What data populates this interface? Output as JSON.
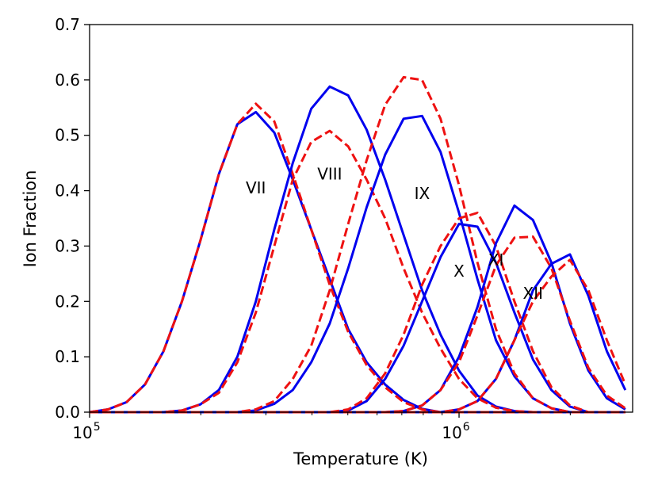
{
  "chart_data": {
    "type": "line",
    "title": "",
    "xlabel": "Temperature (K)",
    "ylabel": "Ion Fraction",
    "xscale": "log",
    "xlim": [
      100000,
      2950000
    ],
    "ylim": [
      0,
      0.7
    ],
    "grid": false,
    "y_ticks": [
      {
        "value": 0.0,
        "label": "0.0"
      },
      {
        "value": 0.1,
        "label": "0.1"
      },
      {
        "value": 0.2,
        "label": "0.2"
      },
      {
        "value": 0.3,
        "label": "0.3"
      },
      {
        "value": 0.4,
        "label": "0.4"
      },
      {
        "value": 0.5,
        "label": "0.5"
      },
      {
        "value": 0.6,
        "label": "0.6"
      },
      {
        "value": 0.7,
        "label": "0.7"
      }
    ],
    "x_ticks": [
      {
        "value": 100000,
        "base": "10",
        "exp": "5"
      },
      {
        "value": 1000000,
        "base": "10",
        "exp": "6"
      }
    ],
    "x": [
      100000,
      112202,
      125893,
      141254,
      158489,
      177828,
      199526,
      223872,
      251189,
      281838,
      316228,
      354813,
      398107,
      446684,
      501187,
      562341,
      630957,
      707946,
      794328,
      891251,
      1000000,
      1122018,
      1258925,
      1412538,
      1584893,
      1778279,
      1995262,
      2238721,
      2511886,
      2818383
    ],
    "series": [
      {
        "name": "VII",
        "style": "solid",
        "color": "#0000ee",
        "values": [
          0.0,
          0.005,
          0.018,
          0.05,
          0.11,
          0.2,
          0.31,
          0.43,
          0.52,
          0.542,
          0.505,
          0.42,
          0.33,
          0.24,
          0.15,
          0.09,
          0.05,
          0.022,
          0.006,
          0.0,
          0,
          0,
          0,
          0,
          0,
          0,
          0,
          0,
          0,
          0
        ]
      },
      {
        "name": "VII",
        "style": "dashed",
        "color": "#ee1111",
        "values": [
          0.0,
          0.005,
          0.018,
          0.05,
          0.11,
          0.2,
          0.31,
          0.43,
          0.52,
          0.557,
          0.525,
          0.43,
          0.33,
          0.23,
          0.145,
          0.085,
          0.045,
          0.018,
          0.005,
          0.0,
          0,
          0,
          0,
          0,
          0,
          0,
          0,
          0,
          0,
          0
        ]
      },
      {
        "name": "VIII",
        "style": "solid",
        "color": "#0000ee",
        "values": [
          0,
          0,
          0,
          0,
          0,
          0.003,
          0.014,
          0.04,
          0.1,
          0.2,
          0.33,
          0.45,
          0.548,
          0.588,
          0.572,
          0.51,
          0.42,
          0.32,
          0.22,
          0.14,
          0.075,
          0.03,
          0.01,
          0.002,
          0,
          0,
          0,
          0,
          0,
          0
        ]
      },
      {
        "name": "VIII",
        "style": "dashed",
        "color": "#ee1111",
        "values": [
          0,
          0,
          0,
          0,
          0,
          0.003,
          0.014,
          0.035,
          0.09,
          0.18,
          0.3,
          0.42,
          0.488,
          0.508,
          0.48,
          0.42,
          0.35,
          0.26,
          0.18,
          0.115,
          0.06,
          0.025,
          0.008,
          0.002,
          0,
          0,
          0,
          0,
          0,
          0
        ]
      },
      {
        "name": "IX",
        "style": "solid",
        "color": "#0000ee",
        "values": [
          0,
          0,
          0,
          0,
          0,
          0,
          0,
          0,
          0,
          0.003,
          0.015,
          0.04,
          0.09,
          0.16,
          0.26,
          0.37,
          0.465,
          0.53,
          0.535,
          0.47,
          0.36,
          0.24,
          0.13,
          0.065,
          0.025,
          0.007,
          0,
          0,
          0,
          0
        ]
      },
      {
        "name": "IX",
        "style": "dashed",
        "color": "#ee1111",
        "values": [
          0,
          0,
          0,
          0,
          0,
          0,
          0,
          0,
          0,
          0.005,
          0.02,
          0.06,
          0.12,
          0.22,
          0.34,
          0.455,
          0.555,
          0.605,
          0.6,
          0.53,
          0.41,
          0.27,
          0.15,
          0.07,
          0.025,
          0.007,
          0,
          0,
          0,
          0
        ]
      },
      {
        "name": "X",
        "style": "solid",
        "color": "#0000ee",
        "values": [
          0,
          0,
          0,
          0,
          0,
          0,
          0,
          0,
          0,
          0,
          0,
          0,
          0,
          0,
          0.003,
          0.02,
          0.06,
          0.12,
          0.2,
          0.28,
          0.34,
          0.335,
          0.27,
          0.18,
          0.095,
          0.04,
          0.01,
          0,
          0,
          0
        ]
      },
      {
        "name": "X",
        "style": "dashed",
        "color": "#ee1111",
        "values": [
          0,
          0,
          0,
          0,
          0,
          0,
          0,
          0,
          0,
          0,
          0,
          0,
          0,
          0,
          0.005,
          0.025,
          0.07,
          0.14,
          0.23,
          0.3,
          0.35,
          0.36,
          0.3,
          0.2,
          0.11,
          0.045,
          0.012,
          0,
          0,
          0
        ]
      },
      {
        "name": "XI",
        "style": "solid",
        "color": "#0000ee",
        "values": [
          0,
          0,
          0,
          0,
          0,
          0,
          0,
          0,
          0,
          0,
          0,
          0,
          0,
          0,
          0,
          0,
          0,
          0.002,
          0.012,
          0.04,
          0.1,
          0.19,
          0.305,
          0.373,
          0.347,
          0.27,
          0.16,
          0.075,
          0.025,
          0.005
        ]
      },
      {
        "name": "XI",
        "style": "dashed",
        "color": "#ee1111",
        "values": [
          0,
          0,
          0,
          0,
          0,
          0,
          0,
          0,
          0,
          0,
          0,
          0,
          0,
          0,
          0,
          0,
          0,
          0.002,
          0.012,
          0.04,
          0.09,
          0.175,
          0.265,
          0.315,
          0.317,
          0.26,
          0.165,
          0.08,
          0.03,
          0.007
        ]
      },
      {
        "name": "XII",
        "style": "solid",
        "color": "#0000ee",
        "values": [
          0,
          0,
          0,
          0,
          0,
          0,
          0,
          0,
          0,
          0,
          0,
          0,
          0,
          0,
          0,
          0,
          0,
          0,
          0,
          0,
          0.005,
          0.02,
          0.06,
          0.13,
          0.22,
          0.268,
          0.285,
          0.21,
          0.11,
          0.04
        ]
      },
      {
        "name": "XII",
        "style": "dashed",
        "color": "#ee1111",
        "values": [
          0,
          0,
          0,
          0,
          0,
          0,
          0,
          0,
          0,
          0,
          0,
          0,
          0,
          0,
          0,
          0,
          0,
          0,
          0,
          0,
          0.005,
          0.02,
          0.06,
          0.13,
          0.2,
          0.245,
          0.275,
          0.22,
          0.13,
          0.05
        ]
      }
    ],
    "annotations": [
      {
        "text": "VII",
        "x": 281838,
        "y": 0.395
      },
      {
        "text": "VIII",
        "x": 446684,
        "y": 0.42
      },
      {
        "text": "IX",
        "x": 794328,
        "y": 0.385
      },
      {
        "text": "X",
        "x": 1000000,
        "y": 0.245
      },
      {
        "text": "XI",
        "x": 1258925,
        "y": 0.265
      },
      {
        "text": "XII",
        "x": 1584893,
        "y": 0.205
      }
    ]
  }
}
